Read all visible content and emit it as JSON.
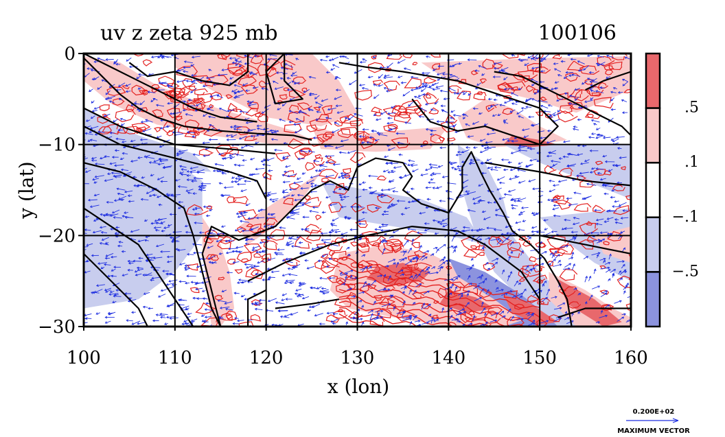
{
  "chart_data": {
    "type": "heatmap",
    "title": "uv z zeta 925 mb",
    "date_label": "100106",
    "xlabel": "x (lon)",
    "ylabel": "y (lat)",
    "xlim": [
      100,
      160
    ],
    "ylim": [
      -30,
      0
    ],
    "x_ticks": [
      {
        "value": 100,
        "label": "100"
      },
      {
        "value": 110,
        "label": "110"
      },
      {
        "value": 120,
        "label": "120"
      },
      {
        "value": 130,
        "label": "130"
      },
      {
        "value": 140,
        "label": "140"
      },
      {
        "value": 150,
        "label": "150"
      },
      {
        "value": 160,
        "label": "160"
      }
    ],
    "y_ticks": [
      {
        "value": 0,
        "label": "0"
      },
      {
        "value": -10,
        "label": "−10"
      },
      {
        "value": -20,
        "label": "−20"
      },
      {
        "value": -30,
        "label": "−30"
      }
    ],
    "grid": true,
    "colorbar": {
      "position": "right",
      "bins": [
        {
          "color": "#e8686c"
        },
        {
          "color": "#f9c9c9"
        },
        {
          "color": "#ffffff"
        },
        {
          "color": "#c8cdee"
        },
        {
          "color": "#8c93de"
        }
      ],
      "labels": [
        ".5",
        ".1",
        "−.1",
        "−.5"
      ]
    },
    "vector_legend": {
      "value_label": "0.200E+02",
      "caption": "MAXIMUM VECTOR"
    },
    "colors": {
      "vector": "#1f2fe0",
      "pos_contour": "#e3201f",
      "coast": "#000000",
      "strong_pos": "#e8686c",
      "weak_pos": "#f9c9c9",
      "weak_neg": "#c8cdee",
      "strong_neg": "#8c93de"
    }
  }
}
